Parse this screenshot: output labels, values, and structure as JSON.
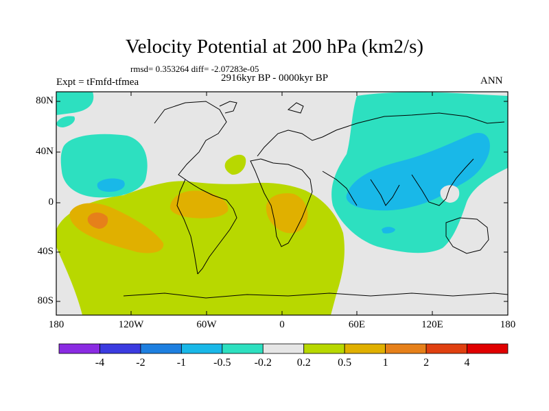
{
  "title": "Velocity Potential at 200 hPa (km2/s)",
  "stats": "rmsd= 0.353264 diff= -2.07283e-05",
  "experiment": "Expt = tFmfd-tfmea",
  "period": "2916kyr BP - 0000kyr BP",
  "season": "ANN",
  "lat_labels": [
    "80N",
    "40N",
    "0",
    "40S",
    "80S"
  ],
  "lon_labels": [
    "180",
    "120W",
    "60W",
    "0",
    "60E",
    "120E",
    "180"
  ],
  "colorbar": {
    "labels": [
      "-4",
      "-2",
      "-1",
      "-0.5",
      "-0.2",
      "0.2",
      "0.5",
      "1",
      "2",
      "4"
    ],
    "colors": [
      "#8a2be2",
      "#3b3be0",
      "#1e7fe0",
      "#19b8e8",
      "#2de0c0",
      "#e6e6e6",
      "#b8d800",
      "#e0b000",
      "#e6801a",
      "#e04010",
      "#e00000"
    ]
  },
  "regions": [
    {
      "name": "western-hemisphere-positive",
      "level": "0.2 to 0.5"
    },
    {
      "name": "asia-pacific-negative",
      "level": "-0.5 to -0.2"
    }
  ]
}
